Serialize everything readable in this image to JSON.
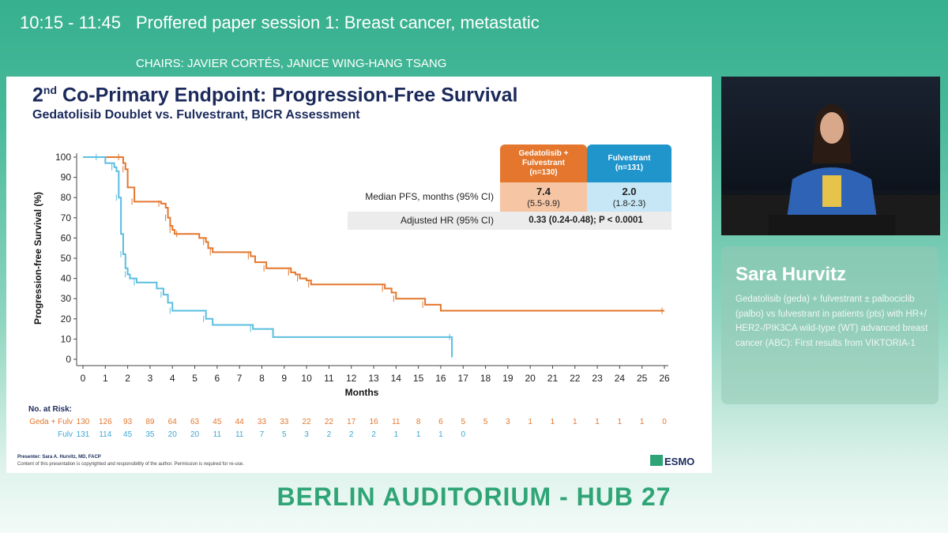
{
  "header": {
    "time": "10:15 - 11:45",
    "session": "Proffered paper session 1: Breast cancer, metastatic",
    "chairs": "CHAIRS: JAVIER CORTÉS, JANICE WING-HANG TSANG"
  },
  "slide": {
    "title_prefix": "2",
    "title_sup": "nd",
    "title_rest": " Co-Primary Endpoint: Progression-Free Survival",
    "subtitle": "Gedatolisib Doublet vs. Fulvestrant, BICR Assessment",
    "table": {
      "col1_header": [
        "Gedatolisib +",
        "Fulvestrant",
        "(n=130)"
      ],
      "col2_header": [
        "Fulvestrant",
        "(n=131)"
      ],
      "row1_label": "Median PFS, months (95% CI)",
      "row1_geda_value": "7.4",
      "row1_geda_ci": "(5.5-9.9)",
      "row1_fulv_value": "2.0",
      "row1_fulv_ci": "(1.8-2.3)",
      "row2_label": "Adjusted HR (95% CI)",
      "row2_value": "0.33 (0.24-0.48); P < 0.0001"
    },
    "presenter": "Presenter: Sara A. Hurvitz, MD, FACP",
    "copyright": "Content of this presentation is copyrighted and responsibility of the author. Permission is required for re-use.",
    "logo_text": "ESMO"
  },
  "chart_data": {
    "type": "line",
    "xlabel": "Months",
    "ylabel": "Progression-free Survival (%)",
    "xlim": [
      0,
      26
    ],
    "ylim": [
      0,
      100
    ],
    "xticks": [
      0,
      1,
      2,
      3,
      4,
      5,
      6,
      7,
      8,
      9,
      10,
      11,
      12,
      13,
      14,
      15,
      16,
      17,
      18,
      19,
      20,
      21,
      22,
      23,
      24,
      25,
      26
    ],
    "yticks": [
      0,
      10,
      20,
      30,
      40,
      50,
      60,
      70,
      80,
      90,
      100
    ],
    "series": [
      {
        "name": "Geda + Fulv",
        "color": "#e4772d",
        "x": [
          0,
          1.7,
          1.8,
          1.9,
          2.0,
          2.3,
          3.2,
          3.5,
          3.7,
          3.8,
          3.9,
          4.0,
          4.1,
          4.3,
          5.2,
          5.5,
          5.6,
          5.8,
          7.2,
          7.5,
          7.7,
          8.2,
          9.1,
          9.3,
          9.5,
          9.7,
          10.0,
          10.2,
          12.0,
          13.5,
          13.8,
          14.0,
          14.3,
          15.3,
          16.0,
          26.0
        ],
        "y": [
          100,
          100,
          97,
          94,
          85,
          78,
          78,
          77,
          75,
          70,
          66,
          64,
          62,
          62,
          60,
          58,
          55,
          53,
          53,
          51,
          48,
          45,
          45,
          43,
          42,
          40,
          39,
          37,
          37,
          35,
          33,
          30,
          30,
          27,
          24,
          24
        ]
      },
      {
        "name": "Fulv",
        "color": "#5bbde0",
        "x": [
          0,
          0.7,
          1.0,
          1.4,
          1.5,
          1.6,
          1.7,
          1.8,
          1.9,
          2.0,
          2.1,
          2.4,
          3.3,
          3.6,
          3.8,
          4.0,
          5.2,
          5.5,
          5.8,
          7.6,
          8.5,
          16.5,
          16.5
        ],
        "y": [
          100,
          100,
          97,
          95,
          93,
          80,
          62,
          52,
          45,
          42,
          40,
          38,
          35,
          32,
          28,
          24,
          24,
          20,
          17,
          15,
          11,
          11,
          1
        ]
      }
    ],
    "risk_table": {
      "label": "No. at Risk:",
      "rows": [
        {
          "name": "Geda + Fulv",
          "color": "#e4772d",
          "values": [
            "130",
            "126",
            "93",
            "89",
            "64",
            "63",
            "45",
            "44",
            "33",
            "33",
            "22",
            "22",
            "17",
            "16",
            "11",
            "8",
            "6",
            "5",
            "5",
            "3",
            "1",
            "1",
            "1",
            "1",
            "1",
            "1",
            "0"
          ]
        },
        {
          "name": "Fulv",
          "color": "#3aa7d6",
          "values": [
            "131",
            "114",
            "45",
            "35",
            "20",
            "20",
            "11",
            "11",
            "7",
            "5",
            "3",
            "2",
            "2",
            "2",
            "1",
            "1",
            "1",
            "0"
          ]
        }
      ]
    }
  },
  "speaker": {
    "name": "Sara Hurvitz",
    "description": "Gedatolisib (geda) + fulvestrant ± palbociclib (palbo) vs fulvestrant in patients (pts) with HR+/ HER2-/PIK3CA wild-type (WT) advanced breast cancer (ABC): First results from VIKTORIA-1"
  },
  "room": "BERLIN AUDITORIUM - HUB 27",
  "colors": {
    "accent": "#2fa577",
    "geda": "#e4772d",
    "fulv": "#1f95cc"
  }
}
